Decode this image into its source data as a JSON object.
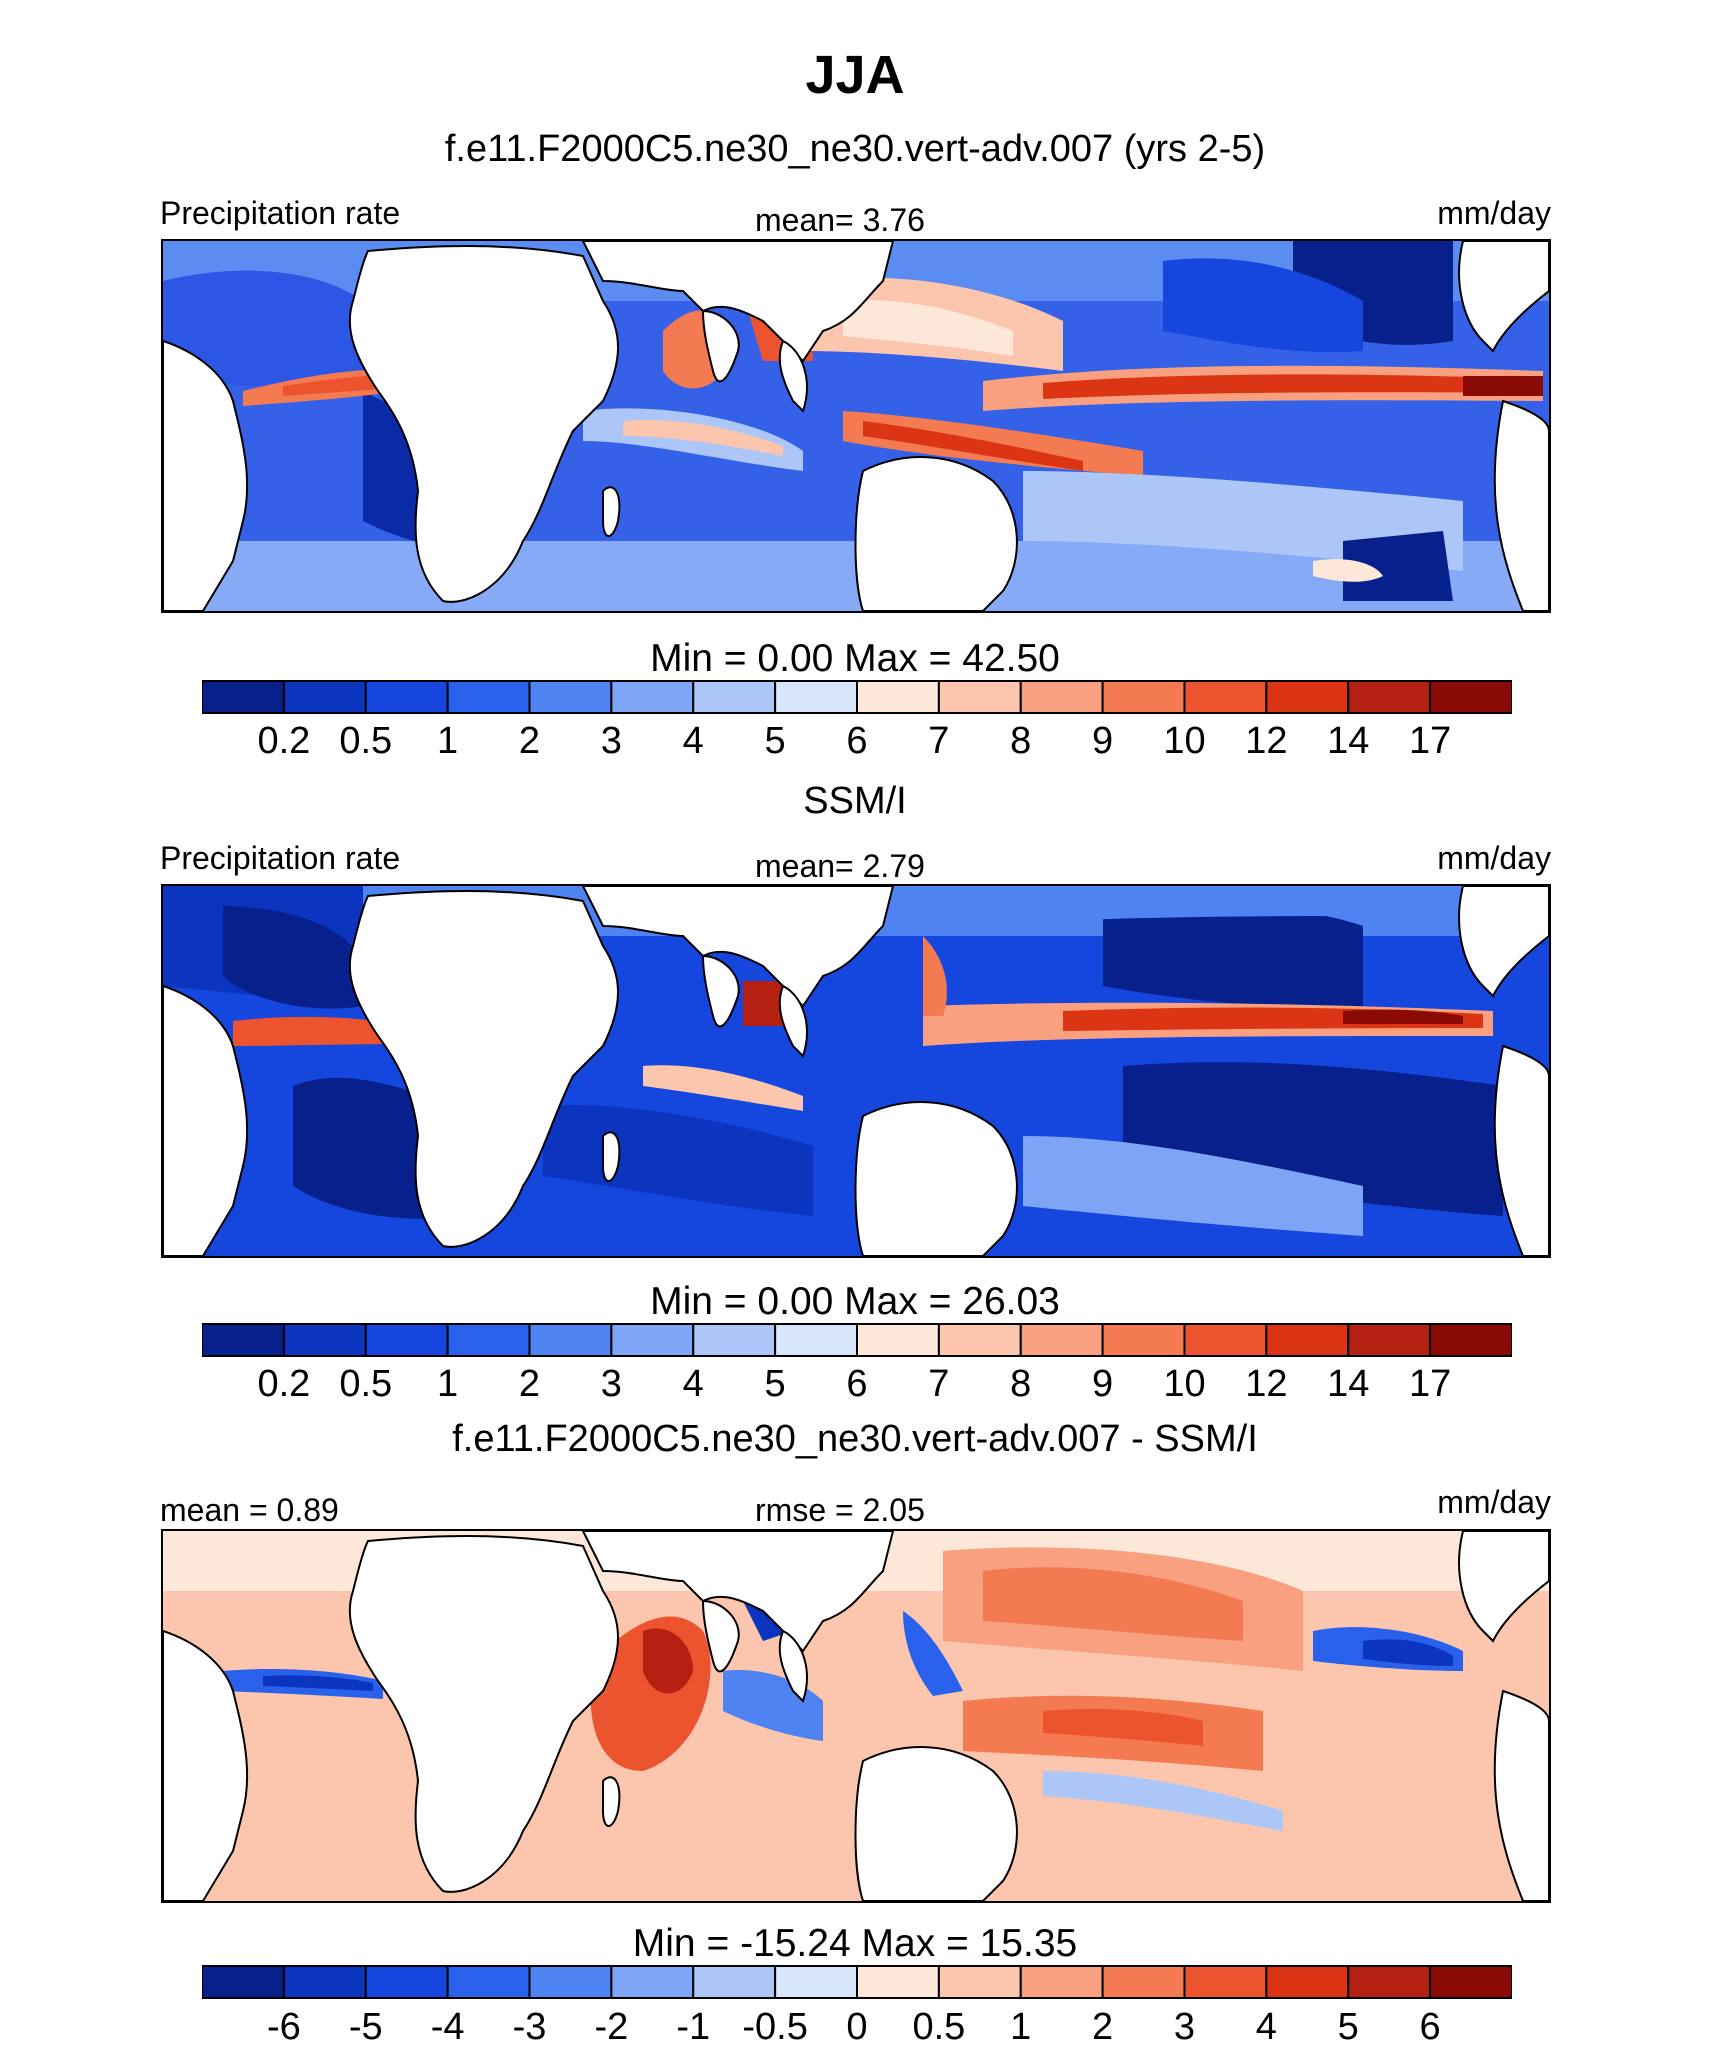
{
  "figure": {
    "title": "JJA"
  },
  "panels": [
    {
      "title": "f.e11.F2000C5.ne30_ne30.vert-adv.007 (yrs 2-5)",
      "left_label": "Precipitation rate",
      "center_label": "mean=   3.76",
      "right_label": "mm/day",
      "minmax": "Min =    0.00 Max =  42.50",
      "colorbar": {
        "colors": [
          "#08208c",
          "#0b34bf",
          "#1547de",
          "#2a61ec",
          "#4f83f2",
          "#7ea4f5",
          "#adc6f8",
          "#d8e6fb",
          "#fde7d8",
          "#fbc6ad",
          "#f8a07f",
          "#f47a52",
          "#ec5430",
          "#dc3515",
          "#b52110",
          "#8a0b05"
        ],
        "tick_labels": [
          "0.2",
          "0.5",
          "1",
          "2",
          "3",
          "4",
          "5",
          "6",
          "7",
          "8",
          "9",
          "10",
          "12",
          "14",
          "17"
        ]
      }
    },
    {
      "title": "SSM/I",
      "left_label": "Precipitation rate",
      "center_label": "mean=   2.79",
      "right_label": "mm/day",
      "minmax": "Min =    0.00 Max =  26.03",
      "colorbar": {
        "colors": [
          "#08208c",
          "#0b34bf",
          "#1547de",
          "#2a61ec",
          "#4f83f2",
          "#7ea4f5",
          "#adc6f8",
          "#d8e6fb",
          "#fde7d8",
          "#fbc6ad",
          "#f8a07f",
          "#f47a52",
          "#ec5430",
          "#dc3515",
          "#b52110",
          "#8a0b05"
        ],
        "tick_labels": [
          "0.2",
          "0.5",
          "1",
          "2",
          "3",
          "4",
          "5",
          "6",
          "7",
          "8",
          "9",
          "10",
          "12",
          "14",
          "17"
        ]
      }
    },
    {
      "title": "f.e11.F2000C5.ne30_ne30.vert-adv.007 - SSM/I",
      "left_label": "mean =   0.89",
      "center_label": "rmse =   2.05",
      "right_label": "mm/day",
      "minmax": "Min = -15.24 Max =  15.35",
      "colorbar": {
        "colors": [
          "#08208c",
          "#0b34bf",
          "#1547de",
          "#2a61ec",
          "#4f83f2",
          "#7ea4f5",
          "#adc6f8",
          "#d8e6fb",
          "#fde7d8",
          "#fbc6ad",
          "#f8a07f",
          "#f47a52",
          "#ec5430",
          "#dc3515",
          "#b52110",
          "#8a0b05"
        ],
        "tick_labels": [
          "-6",
          "-5",
          "-4",
          "-3",
          "-2",
          "-1",
          "-0.5",
          "0",
          "0.5",
          "1",
          "2",
          "3",
          "4",
          "5",
          "6"
        ]
      }
    }
  ],
  "chart_data": [
    {
      "type": "heatmap",
      "title": "f.e11.F2000C5.ne30_ne30.vert-adv.007 (yrs 2-5)",
      "variable": "Precipitation rate",
      "units": "mm/day",
      "season": "JJA",
      "mean": 3.76,
      "min": 0.0,
      "max": 42.5,
      "contour_levels": [
        0.2,
        0.5,
        1,
        2,
        3,
        4,
        5,
        6,
        7,
        8,
        9,
        10,
        12,
        14,
        17
      ]
    },
    {
      "type": "heatmap",
      "title": "SSM/I",
      "variable": "Precipitation rate",
      "units": "mm/day",
      "season": "JJA",
      "mean": 2.79,
      "min": 0.0,
      "max": 26.03,
      "contour_levels": [
        0.2,
        0.5,
        1,
        2,
        3,
        4,
        5,
        6,
        7,
        8,
        9,
        10,
        12,
        14,
        17
      ]
    },
    {
      "type": "heatmap",
      "title": "f.e11.F2000C5.ne30_ne30.vert-adv.007 - SSM/I",
      "units": "mm/day",
      "season": "JJA",
      "mean": 0.89,
      "rmse": 2.05,
      "min": -15.24,
      "max": 15.35,
      "contour_levels": [
        -6,
        -5,
        -4,
        -3,
        -2,
        -1,
        -0.5,
        0,
        0.5,
        1,
        2,
        3,
        4,
        5,
        6
      ]
    }
  ]
}
